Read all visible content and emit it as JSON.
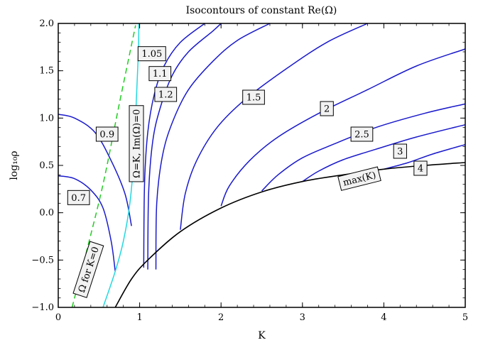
{
  "chart_data": {
    "type": "line",
    "title": "Isocontours of constant Re(Ω)",
    "xlabel": "K",
    "ylabel": "log₁₀ρ",
    "xlim": [
      0,
      5
    ],
    "ylim": [
      -1.0,
      2.0
    ],
    "x_ticks": [
      0,
      1,
      2,
      3,
      4,
      5
    ],
    "x_tick_labels": [
      "0",
      "1",
      "2",
      "3",
      "4",
      "5"
    ],
    "y_ticks": [
      -1.0,
      -0.5,
      0.0,
      0.5,
      1.0,
      1.5,
      2.0
    ],
    "y_tick_labels": [
      "−1.0",
      "−0.5",
      "0.0",
      "0.5",
      "1.0",
      "1.5",
      "2.0"
    ],
    "colors": {
      "contour": "#1a1acc",
      "omega_k_curve": "#22d8e0",
      "omega_k0_curve": "#22cc22",
      "max_k_curve": "#000000"
    },
    "series": [
      {
        "label": "0.7",
        "style": "contour",
        "points": [
          [
            0,
            0.39
          ],
          [
            0.2,
            0.36
          ],
          [
            0.4,
            0.24
          ],
          [
            0.55,
            0.05
          ],
          [
            0.65,
            -0.3
          ],
          [
            0.7,
            -0.62
          ]
        ],
        "label_at": [
          0.25,
          0.16
        ]
      },
      {
        "label": "0.9",
        "style": "contour",
        "points": [
          [
            0,
            1.04
          ],
          [
            0.2,
            1.0
          ],
          [
            0.45,
            0.85
          ],
          [
            0.65,
            0.55
          ],
          [
            0.82,
            0.2
          ],
          [
            0.9,
            -0.14
          ]
        ],
        "label_at": [
          0.6,
          0.83
        ]
      },
      {
        "label": "1.05",
        "style": "contour",
        "points": [
          [
            1.05,
            -0.58
          ],
          [
            1.06,
            0.3
          ],
          [
            1.1,
            0.85
          ],
          [
            1.18,
            1.25
          ],
          [
            1.3,
            1.55
          ],
          [
            1.5,
            1.8
          ],
          [
            1.8,
            2.0
          ]
        ],
        "label_at": [
          1.15,
          1.68
        ]
      },
      {
        "label": "1.1",
        "style": "contour",
        "points": [
          [
            1.1,
            -0.6
          ],
          [
            1.11,
            0.2
          ],
          [
            1.16,
            0.75
          ],
          [
            1.25,
            1.1
          ],
          [
            1.4,
            1.45
          ],
          [
            1.6,
            1.7
          ],
          [
            1.9,
            1.92
          ],
          [
            2.0,
            2.0
          ]
        ],
        "label_at": [
          1.25,
          1.47
        ]
      },
      {
        "label": "1.2",
        "style": "contour",
        "points": [
          [
            1.2,
            -0.6
          ],
          [
            1.21,
            0.1
          ],
          [
            1.28,
            0.6
          ],
          [
            1.4,
            0.95
          ],
          [
            1.6,
            1.3
          ],
          [
            1.9,
            1.6
          ],
          [
            2.2,
            1.82
          ],
          [
            2.6,
            2.0
          ]
        ],
        "label_at": [
          1.32,
          1.25
        ]
      },
      {
        "label": "1.5",
        "style": "contour",
        "points": [
          [
            1.5,
            -0.18
          ],
          [
            1.56,
            0.2
          ],
          [
            1.7,
            0.55
          ],
          [
            1.95,
            0.9
          ],
          [
            2.3,
            1.2
          ],
          [
            2.8,
            1.52
          ],
          [
            3.3,
            1.8
          ],
          [
            3.8,
            2.0
          ]
        ],
        "label_at": [
          2.4,
          1.22
        ]
      },
      {
        "label": "2",
        "style": "contour",
        "points": [
          [
            2.0,
            0.07
          ],
          [
            2.1,
            0.28
          ],
          [
            2.35,
            0.55
          ],
          [
            2.7,
            0.8
          ],
          [
            3.2,
            1.05
          ],
          [
            3.8,
            1.3
          ],
          [
            4.4,
            1.55
          ],
          [
            5.0,
            1.73
          ]
        ],
        "label_at": [
          3.3,
          1.1
        ]
      },
      {
        "label": "2.5",
        "style": "contour",
        "points": [
          [
            2.5,
            0.23
          ],
          [
            2.7,
            0.4
          ],
          [
            3.0,
            0.58
          ],
          [
            3.4,
            0.73
          ],
          [
            3.9,
            0.9
          ],
          [
            4.5,
            1.05
          ],
          [
            5.0,
            1.15
          ]
        ],
        "label_at": [
          3.73,
          0.83
        ]
      },
      {
        "label": "3",
        "style": "contour",
        "points": [
          [
            3.0,
            0.33
          ],
          [
            3.2,
            0.44
          ],
          [
            3.5,
            0.56
          ],
          [
            3.9,
            0.67
          ],
          [
            4.4,
            0.8
          ],
          [
            5.0,
            0.93
          ]
        ],
        "label_at": [
          4.2,
          0.65
        ]
      },
      {
        "label": "4",
        "style": "contour",
        "points": [
          [
            4.0,
            0.46
          ],
          [
            4.3,
            0.53
          ],
          [
            4.6,
            0.62
          ],
          [
            5.0,
            0.72
          ]
        ],
        "label_at": [
          4.45,
          0.47
        ]
      },
      {
        "label": "Ω=K, Im(Ω)=0",
        "style": "omega_k_curve",
        "points": [
          [
            0.55,
            -1.0
          ],
          [
            0.7,
            -0.62
          ],
          [
            0.8,
            -0.3
          ],
          [
            0.88,
            0.1
          ],
          [
            0.93,
            0.6
          ],
          [
            0.96,
            1.2
          ],
          [
            0.985,
            1.7
          ],
          [
            0.99,
            2.0
          ]
        ],
        "label_at": [
          0.96,
          0.73
        ],
        "label_rotation": -90
      },
      {
        "label": "Ω for K=0",
        "style": "omega_k0_curve",
        "dashed": true,
        "points": [
          [
            0.17,
            -1.0
          ],
          [
            0.35,
            -0.4
          ],
          [
            0.55,
            0.3
          ],
          [
            0.75,
            1.15
          ],
          [
            0.95,
            1.98
          ]
        ],
        "label_at": [
          0.37,
          -0.6
        ],
        "label_rotation": -72
      },
      {
        "label": "max(K)",
        "style": "max_k_curve",
        "points": [
          [
            0.7,
            -1.0
          ],
          [
            0.9,
            -0.7
          ],
          [
            1.1,
            -0.5
          ],
          [
            1.5,
            -0.2
          ],
          [
            2.0,
            0.05
          ],
          [
            2.5,
            0.22
          ],
          [
            3.0,
            0.33
          ],
          [
            3.5,
            0.4
          ],
          [
            4.0,
            0.46
          ],
          [
            4.5,
            0.5
          ],
          [
            5.0,
            0.53
          ]
        ],
        "label_at": [
          3.7,
          0.36
        ],
        "label_rotation": -14
      }
    ]
  }
}
